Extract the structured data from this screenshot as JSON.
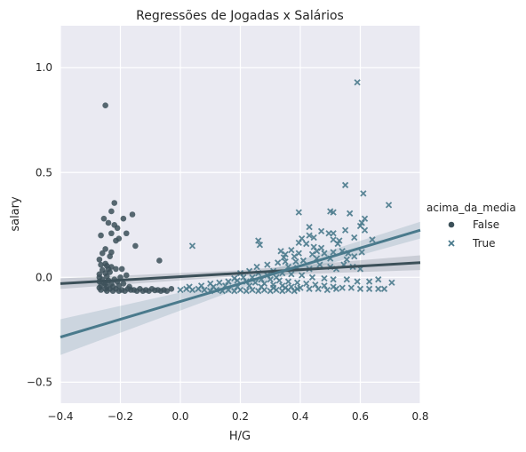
{
  "chart_data": {
    "type": "scatter",
    "title": "Regressões de Jogadas x Salários",
    "xlabel": "H/G",
    "ylabel": "salary",
    "xlim": [
      -0.4,
      0.8
    ],
    "ylim": [
      -0.6,
      1.2
    ],
    "xticks": [
      -0.4,
      -0.2,
      0.0,
      0.2,
      0.4,
      0.6,
      0.8
    ],
    "xtick_labels": [
      "−0.4",
      "−0.2",
      "0.0",
      "0.2",
      "0.4",
      "0.6",
      "0.8"
    ],
    "yticks": [
      -0.5,
      0.0,
      0.5,
      1.0
    ],
    "ytick_labels": [
      "−0.5",
      "0.0",
      "0.5",
      "1.0"
    ],
    "grid": true,
    "background": "#eaeaf2",
    "legend": {
      "title": "acima_da_media",
      "placement": "right",
      "entries": [
        "False",
        "True"
      ]
    },
    "series": [
      {
        "name": "False",
        "marker": "circle",
        "color": "#3c5059",
        "points": [
          [
            -0.25,
            0.82
          ],
          [
            -0.22,
            0.355
          ],
          [
            -0.23,
            0.315
          ],
          [
            -0.16,
            0.3
          ],
          [
            -0.19,
            0.28
          ],
          [
            -0.255,
            0.28
          ],
          [
            -0.24,
            0.26
          ],
          [
            -0.22,
            0.25
          ],
          [
            -0.21,
            0.235
          ],
          [
            -0.18,
            0.21
          ],
          [
            -0.23,
            0.21
          ],
          [
            -0.265,
            0.2
          ],
          [
            -0.205,
            0.185
          ],
          [
            -0.215,
            0.175
          ],
          [
            -0.15,
            0.15
          ],
          [
            -0.25,
            0.135
          ],
          [
            -0.23,
            0.12
          ],
          [
            -0.26,
            0.115
          ],
          [
            -0.07,
            0.08
          ],
          [
            -0.25,
            0.065
          ],
          [
            -0.265,
            0.06
          ],
          [
            -0.245,
            0.055
          ],
          [
            -0.23,
            0.05
          ],
          [
            -0.215,
            0.04
          ],
          [
            -0.195,
            0.04
          ],
          [
            -0.26,
            0.035
          ],
          [
            -0.25,
            0.02
          ],
          [
            -0.235,
            0.025
          ],
          [
            -0.27,
            0.015
          ],
          [
            -0.245,
            0.005
          ],
          [
            -0.2,
            0.0
          ],
          [
            -0.18,
            0.01
          ],
          [
            -0.26,
            -0.01
          ],
          [
            -0.24,
            -0.015
          ],
          [
            -0.22,
            -0.01
          ],
          [
            -0.21,
            -0.02
          ],
          [
            -0.27,
            -0.02
          ],
          [
            -0.25,
            -0.03
          ],
          [
            -0.23,
            -0.03
          ],
          [
            -0.19,
            -0.03
          ],
          [
            -0.265,
            -0.04
          ],
          [
            -0.245,
            -0.045
          ],
          [
            -0.225,
            -0.045
          ],
          [
            -0.205,
            -0.04
          ],
          [
            -0.17,
            -0.045
          ],
          [
            -0.27,
            -0.05
          ],
          [
            -0.25,
            -0.055
          ],
          [
            -0.235,
            -0.055
          ],
          [
            -0.215,
            -0.055
          ],
          [
            -0.195,
            -0.06
          ],
          [
            -0.175,
            -0.055
          ],
          [
            -0.155,
            -0.06
          ],
          [
            -0.135,
            -0.055
          ],
          [
            -0.115,
            -0.06
          ],
          [
            -0.095,
            -0.055
          ],
          [
            -0.075,
            -0.06
          ],
          [
            -0.055,
            -0.06
          ],
          [
            -0.03,
            -0.055
          ],
          [
            -0.265,
            -0.06
          ],
          [
            -0.245,
            -0.065
          ],
          [
            -0.225,
            -0.065
          ],
          [
            -0.205,
            -0.065
          ],
          [
            -0.185,
            -0.065
          ],
          [
            -0.165,
            -0.06
          ],
          [
            -0.145,
            -0.065
          ],
          [
            -0.125,
            -0.065
          ],
          [
            -0.105,
            -0.065
          ],
          [
            -0.085,
            -0.062
          ],
          [
            -0.065,
            -0.065
          ],
          [
            -0.045,
            -0.065
          ],
          [
            -0.255,
            -0.025
          ],
          [
            -0.24,
            0.04
          ],
          [
            -0.27,
            0.0
          ],
          [
            -0.235,
            0.1
          ],
          [
            -0.27,
            0.085
          ]
        ]
      },
      {
        "name": "True",
        "marker": "x",
        "color": "#4a7a8c",
        "points": [
          [
            0.59,
            0.93
          ],
          [
            0.55,
            0.44
          ],
          [
            0.61,
            0.4
          ],
          [
            0.695,
            0.345
          ],
          [
            0.5,
            0.315
          ],
          [
            0.51,
            0.31
          ],
          [
            0.565,
            0.305
          ],
          [
            0.395,
            0.31
          ],
          [
            0.615,
            0.28
          ],
          [
            0.43,
            0.24
          ],
          [
            0.47,
            0.22
          ],
          [
            0.55,
            0.225
          ],
          [
            0.51,
            0.21
          ],
          [
            0.495,
            0.21
          ],
          [
            0.605,
            0.26
          ],
          [
            0.6,
            0.245
          ],
          [
            0.615,
            0.225
          ],
          [
            0.04,
            0.15
          ],
          [
            0.26,
            0.175
          ],
          [
            0.265,
            0.155
          ],
          [
            0.43,
            0.2
          ],
          [
            0.445,
            0.19
          ],
          [
            0.405,
            0.185
          ],
          [
            0.395,
            0.165
          ],
          [
            0.42,
            0.16
          ],
          [
            0.51,
            0.18
          ],
          [
            0.53,
            0.175
          ],
          [
            0.58,
            0.19
          ],
          [
            0.64,
            0.18
          ],
          [
            0.47,
            0.14
          ],
          [
            0.37,
            0.13
          ],
          [
            0.335,
            0.125
          ],
          [
            0.445,
            0.145
          ],
          [
            0.395,
            0.115
          ],
          [
            0.345,
            0.095
          ],
          [
            0.44,
            0.11
          ],
          [
            0.48,
            0.115
          ],
          [
            0.51,
            0.12
          ],
          [
            0.54,
            0.125
          ],
          [
            0.56,
            0.115
          ],
          [
            0.58,
            0.1
          ],
          [
            0.605,
            0.12
          ],
          [
            0.455,
            0.09
          ],
          [
            0.41,
            0.08
          ],
          [
            0.385,
            0.075
          ],
          [
            0.35,
            0.075
          ],
          [
            0.325,
            0.07
          ],
          [
            0.29,
            0.06
          ],
          [
            0.255,
            0.05
          ],
          [
            0.23,
            0.03
          ],
          [
            0.2,
            0.02
          ],
          [
            0.36,
            0.05
          ],
          [
            0.39,
            0.045
          ],
          [
            0.43,
            0.04
          ],
          [
            0.465,
            0.06
          ],
          [
            0.5,
            0.05
          ],
          [
            0.52,
            0.04
          ],
          [
            0.545,
            0.06
          ],
          [
            0.575,
            0.05
          ],
          [
            0.6,
            0.04
          ],
          [
            0.31,
            0.03
          ],
          [
            0.34,
            0.02
          ],
          [
            0.37,
            0.015
          ],
          [
            0.405,
            0.01
          ],
          [
            0.44,
            0.0
          ],
          [
            0.48,
            -0.005
          ],
          [
            0.51,
            -0.01
          ],
          [
            0.555,
            -0.01
          ],
          [
            0.59,
            -0.02
          ],
          [
            0.63,
            -0.02
          ],
          [
            0.66,
            -0.01
          ],
          [
            0.705,
            -0.025
          ],
          [
            0.24,
            0.0
          ],
          [
            0.27,
            -0.01
          ],
          [
            0.3,
            -0.01
          ],
          [
            0.33,
            -0.015
          ],
          [
            0.36,
            -0.02
          ],
          [
            0.39,
            -0.025
          ],
          [
            0.42,
            -0.03
          ],
          [
            0.45,
            -0.035
          ],
          [
            0.48,
            -0.04
          ],
          [
            0.51,
            -0.045
          ],
          [
            0.54,
            -0.05
          ],
          [
            0.57,
            -0.05
          ],
          [
            0.6,
            -0.055
          ],
          [
            0.63,
            -0.055
          ],
          [
            0.66,
            -0.055
          ],
          [
            0.68,
            -0.055
          ],
          [
            0.1,
            -0.03
          ],
          [
            0.13,
            -0.025
          ],
          [
            0.16,
            -0.02
          ],
          [
            0.19,
            -0.015
          ],
          [
            0.22,
            -0.02
          ],
          [
            0.25,
            -0.025
          ],
          [
            0.28,
            -0.03
          ],
          [
            0.31,
            -0.035
          ],
          [
            0.34,
            -0.04
          ],
          [
            0.37,
            -0.045
          ],
          [
            0.4,
            -0.05
          ],
          [
            0.43,
            -0.055
          ],
          [
            0.46,
            -0.055
          ],
          [
            0.49,
            -0.06
          ],
          [
            0.52,
            -0.055
          ],
          [
            0.0,
            -0.06
          ],
          [
            0.02,
            -0.055
          ],
          [
            0.04,
            -0.06
          ],
          [
            0.06,
            -0.055
          ],
          [
            0.08,
            -0.06
          ],
          [
            0.1,
            -0.065
          ],
          [
            0.12,
            -0.06
          ],
          [
            0.14,
            -0.065
          ],
          [
            0.16,
            -0.06
          ],
          [
            0.18,
            -0.065
          ],
          [
            0.2,
            -0.06
          ],
          [
            0.22,
            -0.065
          ],
          [
            0.24,
            -0.06
          ],
          [
            0.26,
            -0.065
          ],
          [
            0.28,
            -0.06
          ],
          [
            0.3,
            -0.065
          ],
          [
            0.32,
            -0.06
          ],
          [
            0.34,
            -0.065
          ],
          [
            0.36,
            -0.06
          ],
          [
            0.38,
            -0.065
          ],
          [
            0.03,
            -0.045
          ],
          [
            0.07,
            -0.04
          ],
          [
            0.11,
            -0.045
          ],
          [
            0.15,
            -0.04
          ],
          [
            0.19,
            -0.045
          ],
          [
            0.23,
            -0.04
          ],
          [
            0.27,
            -0.045
          ],
          [
            0.31,
            -0.05
          ],
          [
            0.35,
            -0.05
          ],
          [
            0.39,
            -0.055
          ],
          [
            0.26,
            0.02
          ],
          [
            0.29,
            0.01
          ],
          [
            0.32,
            0.0
          ],
          [
            0.18,
            -0.005
          ],
          [
            0.21,
            0.0
          ],
          [
            0.35,
            0.11
          ],
          [
            0.38,
            0.1
          ],
          [
            0.525,
            0.16
          ],
          [
            0.455,
            0.125
          ],
          [
            0.5,
            0.09
          ],
          [
            0.555,
            0.085
          ]
        ]
      }
    ],
    "regression_lines": [
      {
        "series": "False",
        "x": [
          -0.4,
          0.8
        ],
        "y": [
          -0.03,
          0.07
        ],
        "band_halfwidth": [
          0.025,
          0.035
        ]
      },
      {
        "series": "True",
        "x": [
          -0.4,
          0.8
        ],
        "y": [
          -0.285,
          0.225
        ],
        "band_halfwidth": [
          0.085,
          0.04
        ]
      }
    ]
  }
}
